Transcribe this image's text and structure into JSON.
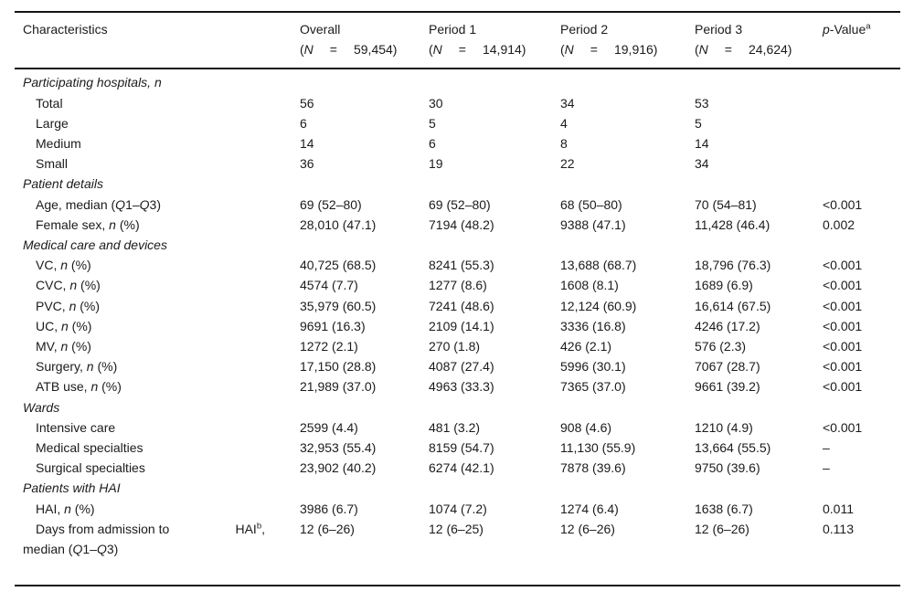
{
  "table": {
    "header": {
      "characteristics": "Characteristics",
      "n_open": "(",
      "n_symbol": "N",
      "n_eq": "=",
      "groups": [
        {
          "title": "Overall",
          "n": "59,454)"
        },
        {
          "title": "Period 1",
          "n": "14,914)"
        },
        {
          "title": "Period 2",
          "n": "19,916)"
        },
        {
          "title": "Period 3",
          "n": "24,624)"
        }
      ],
      "pvalue_segments": [
        {
          "t": "p",
          "i": 1
        },
        {
          "t": "-Value"
        },
        {
          "t": "a",
          "s": 1
        }
      ]
    },
    "rows": [
      {
        "type": "section",
        "label": [
          {
            "t": "Participating hospitals, n"
          }
        ]
      },
      {
        "type": "item",
        "label": [
          {
            "t": "Total"
          }
        ],
        "values": [
          "56",
          "30",
          "34",
          "53",
          ""
        ]
      },
      {
        "type": "item",
        "label": [
          {
            "t": "Large"
          }
        ],
        "values": [
          "6",
          "5",
          "4",
          "5",
          ""
        ]
      },
      {
        "type": "item",
        "label": [
          {
            "t": "Medium"
          }
        ],
        "values": [
          "14",
          "6",
          "8",
          "14",
          ""
        ]
      },
      {
        "type": "item",
        "label": [
          {
            "t": "Small"
          }
        ],
        "values": [
          "36",
          "19",
          "22",
          "34",
          ""
        ]
      },
      {
        "type": "section",
        "label": [
          {
            "t": "Patient details"
          }
        ]
      },
      {
        "type": "item",
        "label": [
          {
            "t": "Age, median ("
          },
          {
            "t": "Q",
            "i": 1
          },
          {
            "t": "1–"
          },
          {
            "t": "Q",
            "i": 1
          },
          {
            "t": "3)"
          }
        ],
        "values": [
          "69 (52–80)",
          "69 (52–80)",
          "68 (50–80)",
          "70 (54–81)",
          "<0.001"
        ]
      },
      {
        "type": "item",
        "label": [
          {
            "t": "Female sex, "
          },
          {
            "t": "n",
            "i": 1
          },
          {
            "t": " (%)"
          }
        ],
        "values": [
          "28,010 (47.1)",
          "7194 (48.2)",
          "9388 (47.1)",
          "11,428 (46.4)",
          "0.002"
        ]
      },
      {
        "type": "section",
        "label": [
          {
            "t": "Medical care and devices"
          }
        ]
      },
      {
        "type": "item",
        "label": [
          {
            "t": "VC, "
          },
          {
            "t": "n",
            "i": 1
          },
          {
            "t": " (%)"
          }
        ],
        "values": [
          "40,725 (68.5)",
          "8241 (55.3)",
          "13,688 (68.7)",
          "18,796 (76.3)",
          "<0.001"
        ]
      },
      {
        "type": "item",
        "label": [
          {
            "t": "CVC, "
          },
          {
            "t": "n",
            "i": 1
          },
          {
            "t": " (%)"
          }
        ],
        "values": [
          "4574 (7.7)",
          "1277 (8.6)",
          "1608 (8.1)",
          "1689 (6.9)",
          "<0.001"
        ]
      },
      {
        "type": "item",
        "label": [
          {
            "t": "PVC, "
          },
          {
            "t": "n",
            "i": 1
          },
          {
            "t": " (%)"
          }
        ],
        "values": [
          "35,979 (60.5)",
          "7241 (48.6)",
          "12,124 (60.9)",
          "16,614 (67.5)",
          "<0.001"
        ]
      },
      {
        "type": "item",
        "label": [
          {
            "t": "UC, "
          },
          {
            "t": "n",
            "i": 1
          },
          {
            "t": " (%)"
          }
        ],
        "values": [
          "9691 (16.3)",
          "2109 (14.1)",
          "3336 (16.8)",
          "4246 (17.2)",
          "<0.001"
        ]
      },
      {
        "type": "item",
        "label": [
          {
            "t": "MV, "
          },
          {
            "t": "n",
            "i": 1
          },
          {
            "t": " (%)"
          }
        ],
        "values": [
          "1272 (2.1)",
          "270 (1.8)",
          "426 (2.1)",
          "576 (2.3)",
          "<0.001"
        ]
      },
      {
        "type": "item",
        "label": [
          {
            "t": "Surgery, "
          },
          {
            "t": "n",
            "i": 1
          },
          {
            "t": " (%)"
          }
        ],
        "values": [
          "17,150 (28.8)",
          "4087 (27.4)",
          "5996 (30.1)",
          "7067 (28.7)",
          "<0.001"
        ]
      },
      {
        "type": "item",
        "label": [
          {
            "t": "ATB use, "
          },
          {
            "t": "n",
            "i": 1
          },
          {
            "t": " (%)"
          }
        ],
        "values": [
          "21,989 (37.0)",
          "4963 (33.3)",
          "7365 (37.0)",
          "9661 (39.2)",
          "<0.001"
        ]
      },
      {
        "type": "section",
        "label": [
          {
            "t": "Wards"
          }
        ]
      },
      {
        "type": "item",
        "label": [
          {
            "t": "Intensive care"
          }
        ],
        "values": [
          "2599 (4.4)",
          "481 (3.2)",
          "908 (4.6)",
          "1210 (4.9)",
          "<0.001"
        ]
      },
      {
        "type": "item",
        "label": [
          {
            "t": "Medical specialties"
          }
        ],
        "values": [
          "32,953 (55.4)",
          "8159 (54.7)",
          "11,130 (55.9)",
          "13,664 (55.5)",
          "–"
        ]
      },
      {
        "type": "item",
        "label": [
          {
            "t": "Surgical specialties"
          }
        ],
        "values": [
          "23,902 (40.2)",
          "6274 (42.1)",
          "7878 (39.6)",
          "9750 (39.6)",
          "–"
        ]
      },
      {
        "type": "section",
        "label": [
          {
            "t": "Patients with HAI"
          }
        ]
      },
      {
        "type": "item",
        "label": [
          {
            "t": "HAI, "
          },
          {
            "t": "n",
            "i": 1
          },
          {
            "t": " (%)"
          }
        ],
        "values": [
          "3986 (6.7)",
          "1074 (7.2)",
          "1274 (6.4)",
          "1638 (6.7)",
          "0.011"
        ]
      },
      {
        "type": "wrap",
        "line1_left": [
          {
            "t": "Days from admission to"
          }
        ],
        "line1_right": [
          {
            "t": "HAI"
          },
          {
            "t": "b",
            "s": 1
          },
          {
            "t": ","
          }
        ],
        "line2": [
          {
            "t": "median ("
          },
          {
            "t": "Q",
            "i": 1
          },
          {
            "t": "1–"
          },
          {
            "t": "Q",
            "i": 1
          },
          {
            "t": "3)"
          }
        ],
        "values": [
          "12 (6–26)",
          "12 (6–25)",
          "12 (6–26)",
          "12 (6–26)",
          "0.113"
        ]
      }
    ]
  }
}
